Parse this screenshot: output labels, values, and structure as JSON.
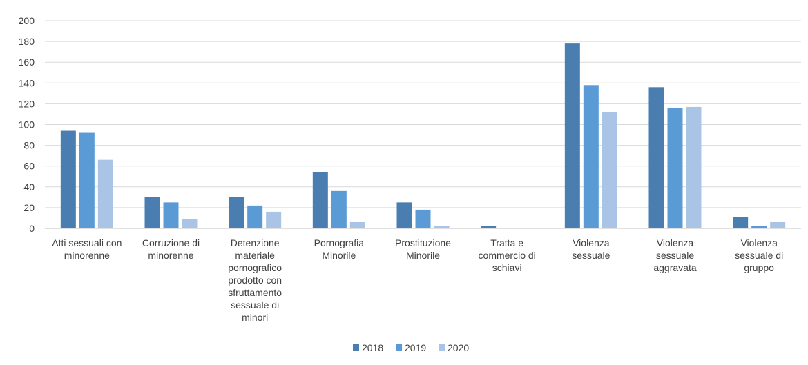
{
  "chart_data": {
    "type": "bar",
    "title": "",
    "xlabel": "",
    "ylabel": "",
    "ylim": [
      0,
      200
    ],
    "yticks": [
      0,
      20,
      40,
      60,
      80,
      100,
      120,
      140,
      160,
      180,
      200
    ],
    "grid": true,
    "legend_position": "bottom",
    "categories": [
      [
        "Atti sessuali con",
        "minorenne"
      ],
      [
        "Corruzione di",
        "minorenne"
      ],
      [
        "Detenzione",
        "materiale",
        "pornografico",
        "prodotto con",
        "sfruttamento",
        "sessuale di",
        "minori"
      ],
      [
        "Pornografia",
        "Minorile"
      ],
      [
        "Prostituzione",
        "Minorile"
      ],
      [
        "Tratta e",
        "commercio di",
        "schiavi"
      ],
      [
        "Violenza",
        "sessuale"
      ],
      [
        "Violenza",
        "sessuale",
        "aggravata"
      ],
      [
        "Violenza",
        "sessuale di",
        "gruppo"
      ]
    ],
    "series": [
      {
        "name": "2018",
        "color": "#4a7eb0",
        "values": [
          94,
          30,
          30,
          54,
          25,
          2,
          178,
          136,
          11
        ]
      },
      {
        "name": "2019",
        "color": "#5b9bd5",
        "values": [
          92,
          25,
          22,
          36,
          18,
          0,
          138,
          116,
          2
        ]
      },
      {
        "name": "2020",
        "color": "#a9c4e4",
        "values": [
          66,
          9,
          16,
          6,
          2,
          0,
          112,
          117,
          6
        ]
      }
    ]
  }
}
